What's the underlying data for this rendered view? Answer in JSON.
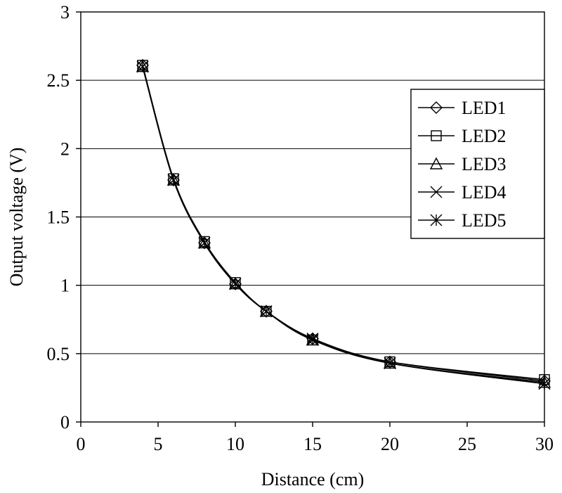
{
  "chart_data": {
    "type": "line",
    "xlabel": "Distance (cm)",
    "ylabel": "Output voltage (V)",
    "xlim": [
      0,
      30
    ],
    "ylim": [
      0,
      3
    ],
    "xticks": [
      "0",
      "5",
      "10",
      "15",
      "20",
      "25",
      "30"
    ],
    "yticks": [
      "0",
      "0.5",
      "1",
      "1.5",
      "2",
      "2.5",
      "3"
    ],
    "grid": "horizontal",
    "legend_position": "right",
    "x": [
      4,
      6,
      8,
      10,
      12,
      15,
      20,
      30
    ],
    "series": [
      {
        "name": "LED1",
        "marker": "diamond",
        "values": [
          2.61,
          1.77,
          1.31,
          1.01,
          0.81,
          0.61,
          0.44,
          0.3
        ]
      },
      {
        "name": "LED2",
        "marker": "square",
        "values": [
          2.61,
          1.78,
          1.32,
          1.02,
          0.81,
          0.6,
          0.44,
          0.31
        ]
      },
      {
        "name": "LED3",
        "marker": "triangle",
        "values": [
          2.6,
          1.77,
          1.31,
          1.01,
          0.81,
          0.6,
          0.43,
          0.29
        ]
      },
      {
        "name": "LED4",
        "marker": "x",
        "values": [
          2.6,
          1.77,
          1.31,
          1.01,
          0.81,
          0.6,
          0.43,
          0.28
        ]
      },
      {
        "name": "LED5",
        "marker": "asterisk",
        "values": [
          2.6,
          1.77,
          1.31,
          1.01,
          0.81,
          0.61,
          0.43,
          0.28
        ]
      }
    ]
  }
}
